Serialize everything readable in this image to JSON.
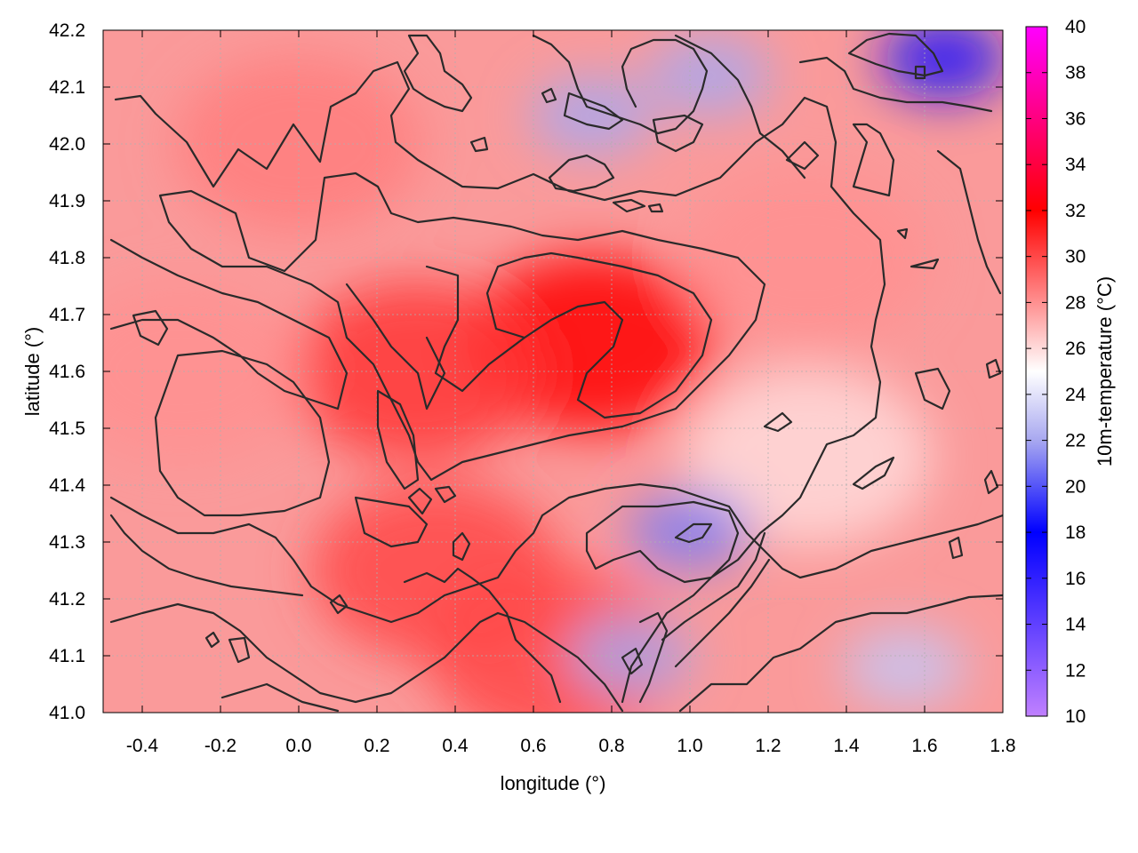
{
  "chart_data": {
    "type": "heatmap",
    "title": "",
    "xlabel": "longitude (°)",
    "ylabel": "latitude (°)",
    "colorbar_label": "10m-temperature (°C)",
    "xlim": [
      -0.5,
      1.8
    ],
    "ylim": [
      41.0,
      42.2
    ],
    "clim": [
      10,
      40
    ],
    "grid": true,
    "x_ticks": [
      "-0.4",
      "-0.2",
      "0.0",
      "0.2",
      "0.4",
      "0.6",
      "0.8",
      "1.0",
      "1.2",
      "1.4",
      "1.6",
      "1.8"
    ],
    "x_tick_values": [
      -0.4,
      -0.2,
      0.0,
      0.2,
      0.4,
      0.6,
      0.8,
      1.0,
      1.2,
      1.4,
      1.6,
      1.8
    ],
    "y_ticks": [
      "41.0",
      "41.1",
      "41.2",
      "41.3",
      "41.4",
      "41.5",
      "41.6",
      "41.7",
      "41.8",
      "41.9",
      "42.0",
      "42.1",
      "42.2"
    ],
    "y_tick_values": [
      41.0,
      41.1,
      41.2,
      41.3,
      41.4,
      41.5,
      41.6,
      41.7,
      41.8,
      41.9,
      42.0,
      42.1,
      42.2
    ],
    "colorbar_ticks": [
      "10",
      "12",
      "14",
      "16",
      "18",
      "20",
      "22",
      "24",
      "26",
      "28",
      "30",
      "32",
      "34",
      "36",
      "38",
      "40"
    ],
    "colorbar_tick_values": [
      10,
      12,
      14,
      16,
      18,
      20,
      22,
      24,
      26,
      28,
      30,
      32,
      34,
      36,
      38,
      40
    ],
    "colormap": [
      {
        "v": 10,
        "color": "#c080ff"
      },
      {
        "v": 18,
        "color": "#0000ff"
      },
      {
        "v": 22,
        "color": "#a8a8f0"
      },
      {
        "v": 25,
        "color": "#ffffff"
      },
      {
        "v": 28,
        "color": "#ff9090"
      },
      {
        "v": 32,
        "color": "#ff0000"
      },
      {
        "v": 40,
        "color": "#ff00ff"
      }
    ],
    "field_features": [
      {
        "region": "central hot core",
        "lon": 0.75,
        "lat": 41.65,
        "temp": 32
      },
      {
        "region": "central-west hot area",
        "lon": 0.3,
        "lat": 41.6,
        "temp": 30.5
      },
      {
        "region": "south-central hot area",
        "lon": 0.35,
        "lat": 41.25,
        "temp": 30
      },
      {
        "region": "south hot patch",
        "lon": 0.65,
        "lat": 41.1,
        "temp": 30
      },
      {
        "region": "western warm area",
        "lon": -0.3,
        "lat": 41.6,
        "temp": 28
      },
      {
        "region": "northern warm area",
        "lon": 0.0,
        "lat": 42.0,
        "temp": 28.5
      },
      {
        "region": "eastern warm area",
        "lon": 1.3,
        "lat": 41.8,
        "temp": 28
      },
      {
        "region": "eastern mild area",
        "lon": 1.3,
        "lat": 41.45,
        "temp": 26
      },
      {
        "region": "northeast cold corner",
        "lon": 1.65,
        "lat": 42.15,
        "temp": 17
      },
      {
        "region": "north cool patch",
        "lon": 1.05,
        "lat": 42.12,
        "temp": 22
      },
      {
        "region": "north cool patch",
        "lon": 0.75,
        "lat": 42.05,
        "temp": 22
      },
      {
        "region": "southeast coastal cool area",
        "lon": 1.55,
        "lat": 41.08,
        "temp": 23
      },
      {
        "region": "south-east cool pocket",
        "lon": 1.0,
        "lat": 41.32,
        "temp": 21
      },
      {
        "region": "south-east cool pocket",
        "lon": 0.85,
        "lat": 41.1,
        "temp": 22
      }
    ]
  }
}
